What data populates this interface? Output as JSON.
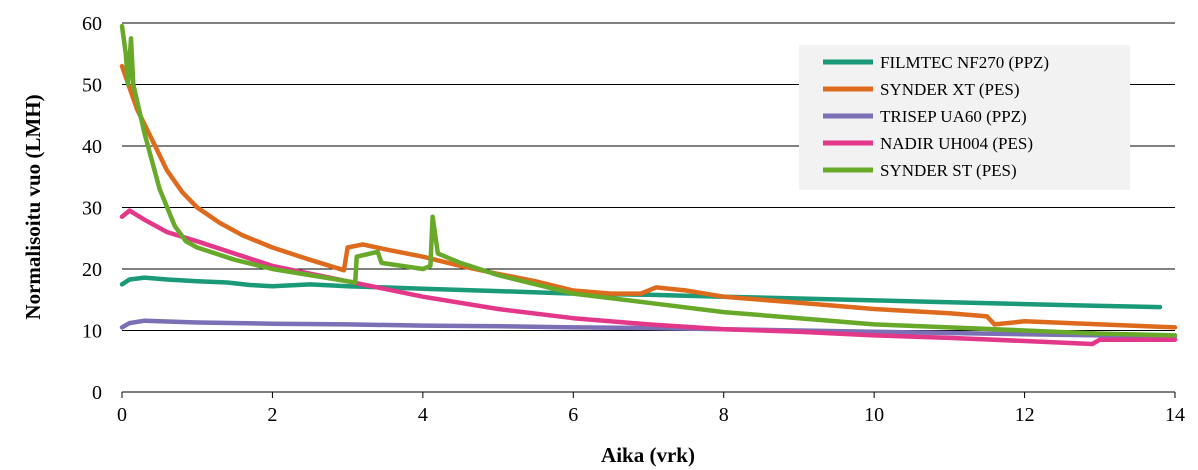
{
  "chart_data": {
    "type": "line",
    "title": "",
    "xlabel": "Aika  (vrk)",
    "ylabel": "Normalisoitu  vuo (LMH)",
    "xlim": [
      0,
      14
    ],
    "ylim": [
      0,
      60
    ],
    "xticks": [
      0,
      2,
      4,
      6,
      8,
      10,
      12,
      14
    ],
    "yticks": [
      0,
      10,
      20,
      30,
      40,
      50,
      60
    ],
    "grid": "horizontal",
    "legend_position": "top-right",
    "series": [
      {
        "name": "FILMTEC NF270 (PPZ)",
        "color": "#1a9a78",
        "points": [
          [
            0,
            17.5
          ],
          [
            0.1,
            18.3
          ],
          [
            0.3,
            18.6
          ],
          [
            0.6,
            18.3
          ],
          [
            1.0,
            18.0
          ],
          [
            1.4,
            17.8
          ],
          [
            1.7,
            17.4
          ],
          [
            2.0,
            17.2
          ],
          [
            2.5,
            17.5
          ],
          [
            3.0,
            17.2
          ],
          [
            4.0,
            16.8
          ],
          [
            5.0,
            16.4
          ],
          [
            6.0,
            16.0
          ],
          [
            7.0,
            15.8
          ],
          [
            8.0,
            15.5
          ],
          [
            9.0,
            15.2
          ],
          [
            10.0,
            14.9
          ],
          [
            11.0,
            14.6
          ],
          [
            12.0,
            14.3
          ],
          [
            13.0,
            14.0
          ],
          [
            13.8,
            13.8
          ]
        ]
      },
      {
        "name": "SYNDER XT (PES)",
        "color": "#de6a1e",
        "points": [
          [
            0,
            53
          ],
          [
            0.2,
            46
          ],
          [
            0.4,
            41
          ],
          [
            0.6,
            36
          ],
          [
            0.8,
            32.5
          ],
          [
            1.0,
            30
          ],
          [
            1.3,
            27.5
          ],
          [
            1.6,
            25.5
          ],
          [
            2.0,
            23.5
          ],
          [
            2.5,
            21.5
          ],
          [
            2.95,
            19.8
          ],
          [
            3.0,
            23.5
          ],
          [
            3.2,
            24.0
          ],
          [
            3.5,
            23.2
          ],
          [
            4.0,
            22.0
          ],
          [
            4.5,
            20.5
          ],
          [
            5.0,
            19.2
          ],
          [
            5.5,
            18.0
          ],
          [
            6.0,
            16.5
          ],
          [
            6.5,
            16.0
          ],
          [
            6.9,
            16.0
          ],
          [
            7.1,
            17.0
          ],
          [
            7.5,
            16.5
          ],
          [
            8.0,
            15.5
          ],
          [
            9.0,
            14.5
          ],
          [
            10.0,
            13.5
          ],
          [
            11.0,
            12.8
          ],
          [
            11.5,
            12.3
          ],
          [
            11.6,
            11.0
          ],
          [
            12.0,
            11.5
          ],
          [
            13.0,
            11.0
          ],
          [
            14.0,
            10.5
          ]
        ]
      },
      {
        "name": "TRISEP UA60 (PPZ)",
        "color": "#7b6fb5",
        "points": [
          [
            0,
            10.5
          ],
          [
            0.1,
            11.2
          ],
          [
            0.3,
            11.6
          ],
          [
            1.0,
            11.3
          ],
          [
            2.0,
            11.1
          ],
          [
            3.0,
            11.0
          ],
          [
            4.0,
            10.8
          ],
          [
            5.0,
            10.7
          ],
          [
            6.0,
            10.5
          ],
          [
            7.0,
            10.4
          ],
          [
            8.0,
            10.2
          ],
          [
            9.0,
            10.0
          ],
          [
            10.0,
            9.8
          ],
          [
            11.0,
            9.6
          ],
          [
            12.0,
            9.4
          ],
          [
            13.0,
            9.2
          ],
          [
            14.0,
            9.0
          ]
        ]
      },
      {
        "name": "NADIR UH004 (PES)",
        "color": "#e3388a",
        "points": [
          [
            0,
            28.5
          ],
          [
            0.1,
            29.5
          ],
          [
            0.3,
            28.0
          ],
          [
            0.6,
            26.0
          ],
          [
            1.0,
            24.5
          ],
          [
            1.5,
            22.5
          ],
          [
            2.0,
            20.5
          ],
          [
            3.0,
            18.0
          ],
          [
            4.0,
            15.5
          ],
          [
            5.0,
            13.5
          ],
          [
            6.0,
            12.0
          ],
          [
            7.0,
            11.0
          ],
          [
            8.0,
            10.2
          ],
          [
            9.0,
            9.8
          ],
          [
            10.0,
            9.2
          ],
          [
            11.0,
            8.8
          ],
          [
            12.0,
            8.3
          ],
          [
            12.9,
            7.8
          ],
          [
            13.0,
            8.5
          ],
          [
            14.0,
            8.5
          ]
        ]
      },
      {
        "name": "SYNDER ST (PES)",
        "color": "#68a92a",
        "points": [
          [
            0,
            59.5
          ],
          [
            0.05,
            55
          ],
          [
            0.08,
            50
          ],
          [
            0.12,
            57.5
          ],
          [
            0.15,
            50
          ],
          [
            0.3,
            42
          ],
          [
            0.5,
            33
          ],
          [
            0.7,
            27
          ],
          [
            0.85,
            24.5
          ],
          [
            1.0,
            23.5
          ],
          [
            1.5,
            21.5
          ],
          [
            2.0,
            20.0
          ],
          [
            2.5,
            19.0
          ],
          [
            3.0,
            18.0
          ],
          [
            3.1,
            17.8
          ],
          [
            3.12,
            22.0
          ],
          [
            3.4,
            22.8
          ],
          [
            3.45,
            21.0
          ],
          [
            4.0,
            20.0
          ],
          [
            4.1,
            20.5
          ],
          [
            4.13,
            28.5
          ],
          [
            4.2,
            22.5
          ],
          [
            4.5,
            21.0
          ],
          [
            5.0,
            19.0
          ],
          [
            6.0,
            16.0
          ],
          [
            7.0,
            14.5
          ],
          [
            8.0,
            13.0
          ],
          [
            9.0,
            12.0
          ],
          [
            10.0,
            11.0
          ],
          [
            11.0,
            10.5
          ],
          [
            12.0,
            10.0
          ],
          [
            13.0,
            9.5
          ],
          [
            14.0,
            9.2
          ]
        ]
      }
    ]
  }
}
